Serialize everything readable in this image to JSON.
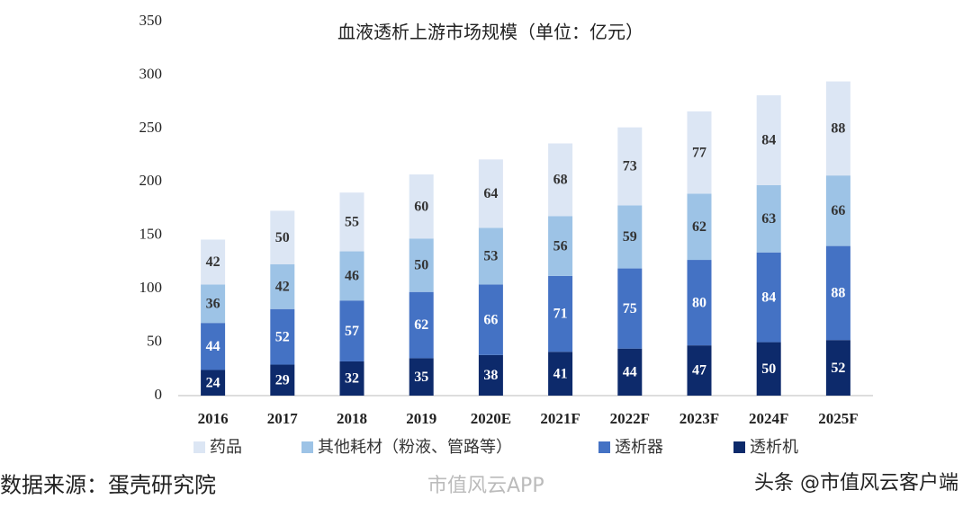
{
  "chart_data": {
    "type": "stacked_bar",
    "title": "血液透析上游市场规模（单位：亿元）",
    "source": "数据来源：蛋壳研究院",
    "watermarks": [
      "市值风云APP",
      "头条 @市值风云客户端"
    ],
    "categories": [
      "2016",
      "2017",
      "2018",
      "2019",
      "2020E",
      "2021F",
      "2022F",
      "2023F",
      "2024F",
      "2025F"
    ],
    "series": [
      {
        "name": "透析机",
        "color": "#0d2a6b",
        "values": [
          24,
          29,
          32,
          35,
          38,
          41,
          44,
          47,
          50,
          52
        ]
      },
      {
        "name": "透析器",
        "color": "#4472c4",
        "values": [
          44,
          52,
          57,
          62,
          66,
          71,
          75,
          80,
          84,
          88
        ]
      },
      {
        "name": "其他耗材（粉液、管路等）",
        "color": "#9dc3e6",
        "values": [
          36,
          42,
          46,
          50,
          53,
          56,
          59,
          62,
          63,
          66
        ]
      },
      {
        "name": "药品",
        "color": "#dce6f4",
        "values": [
          42,
          50,
          55,
          60,
          64,
          68,
          73,
          77,
          84,
          88
        ]
      }
    ],
    "ylim": [
      0,
      350
    ],
    "yticks": [
      0,
      50,
      100,
      150,
      200,
      250,
      300,
      350
    ],
    "grid": false
  }
}
